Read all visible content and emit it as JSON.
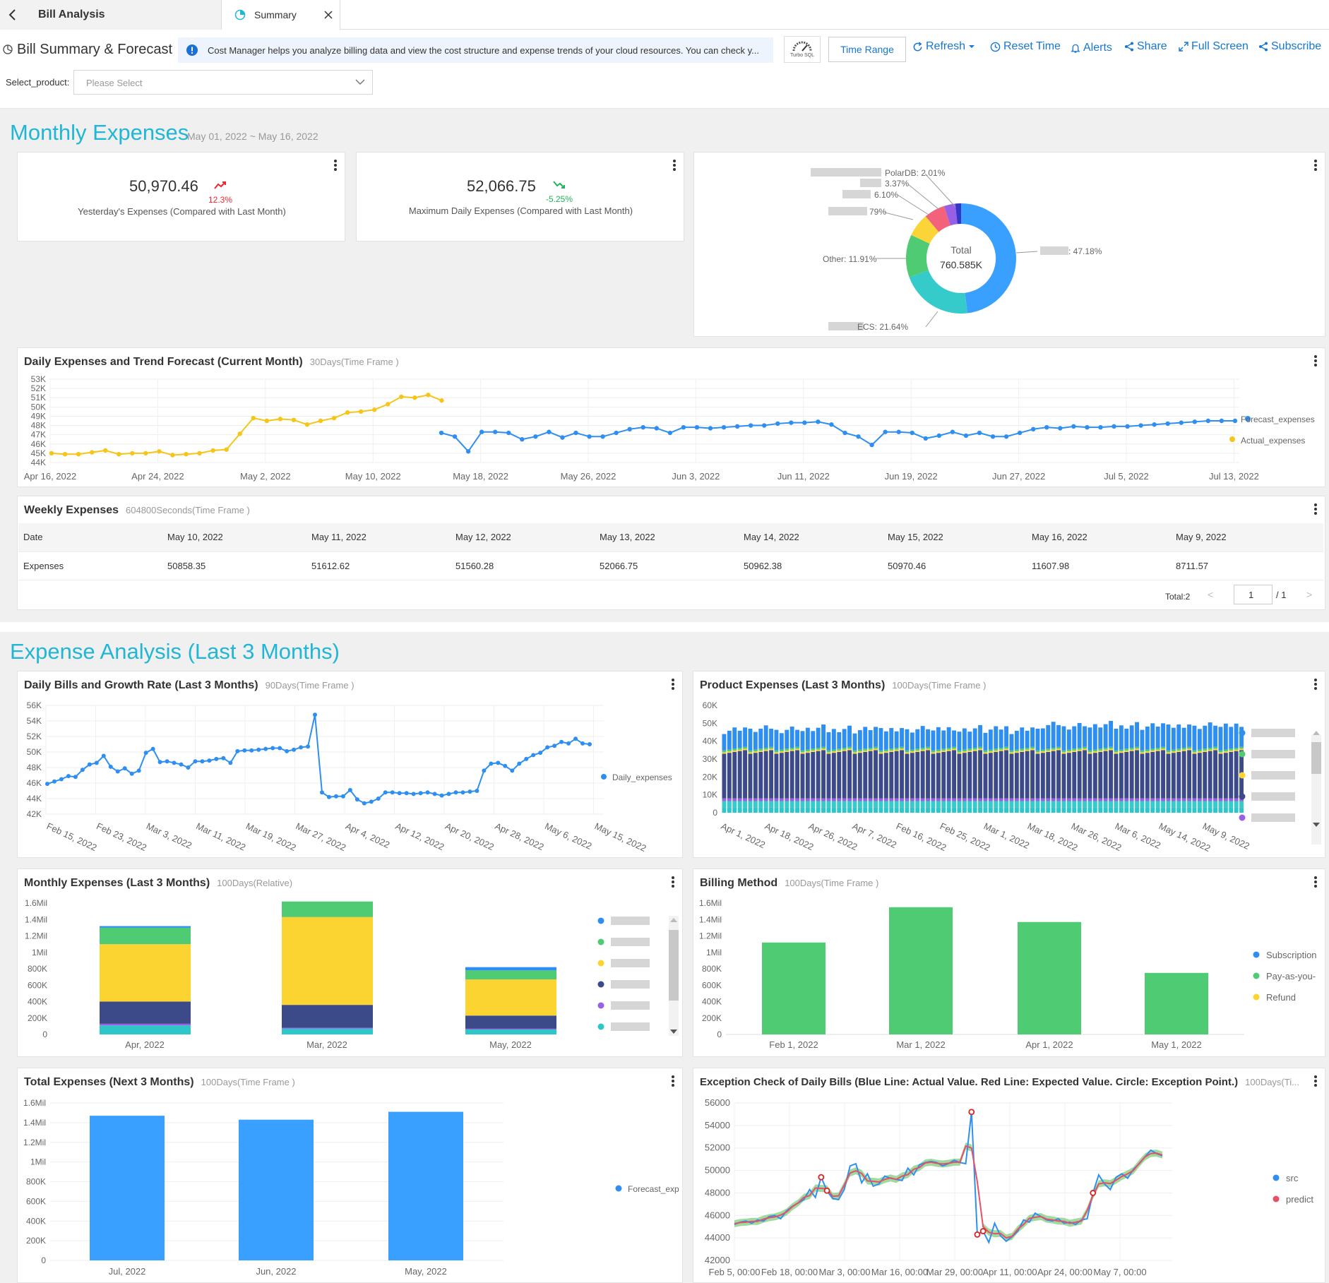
{
  "tabs": {
    "back_label": "Bill Analysis",
    "summary_label": "Summary"
  },
  "header": {
    "title": "Bill Summary & Forecast",
    "info_text": "Cost Manager helps you analyze billing data and view the cost structure and expense trends of your cloud resources. You can check y...",
    "turbo_label": "Turbo SQL",
    "time_range": "Time Range",
    "refresh": "Refresh",
    "reset_time": "Reset Time",
    "alerts": "Alerts",
    "share": "Share",
    "full_screen": "Full Screen",
    "subscribe": "Subscribe",
    "select_label": "Select_product:",
    "select_placeholder": "Please Select"
  },
  "monthly": {
    "title": "Monthly Expenses",
    "date_range": "May 01, 2022 ~ May 16, 2022",
    "kpi1": {
      "value": "50,970.46",
      "change": "12.3%",
      "label": "Yesterday's Expenses (Compared with Last Month)",
      "trend": "up"
    },
    "kpi2": {
      "value": "52,066.75",
      "change": "-5.25%",
      "label": "Maximum Daily Expenses (Compared with Last Month)",
      "trend": "down"
    },
    "donut": {
      "total_label": "Total",
      "total_value": "760.585K",
      "labels": [
        "PolarDB: 2.01%",
        "3.37%",
        "6.10%",
        "79%",
        "Other: 11.91%",
        "ECS: 21.64%",
        ": 47.18%"
      ]
    }
  },
  "daily_forecast": {
    "title": "Daily Expenses and Trend Forecast (Current Month)",
    "sub": "30Days(Time Frame )"
  },
  "weekly": {
    "title": "Weekly Expenses",
    "sub": "604800Seconds(Time Frame )",
    "header": [
      "Date",
      "May 10, 2022",
      "May 11, 2022",
      "May 12, 2022",
      "May 13, 2022",
      "May 14, 2022",
      "May 15, 2022",
      "May 16, 2022",
      "May 9, 2022"
    ],
    "row": [
      "Expenses",
      "50858.35",
      "51612.62",
      "51560.28",
      "52066.75",
      "50962.38",
      "50970.46",
      "11607.98",
      "8711.57"
    ],
    "total": "Total:2",
    "page": "1",
    "pages": "/ 1"
  },
  "analysis": {
    "title": "Expense Analysis (Last 3 Months)"
  },
  "c1": {
    "title": "Daily Bills and Growth Rate (Last 3 Months)",
    "sub": "90Days(Time Frame )"
  },
  "c2": {
    "title": "Product Expenses (Last 3 Months)",
    "sub": "100Days(Time Frame )"
  },
  "c3": {
    "title": "Monthly Expenses (Last 3 Months)",
    "sub": "100Days(Relative)"
  },
  "c4": {
    "title": "Billing Method",
    "sub": "100Days(Time Frame )"
  },
  "c5": {
    "title": "Total Expenses (Next 3 Months)",
    "sub": "100Days(Time Frame )"
  },
  "c6": {
    "title": "Exception Check of Daily Bills (Blue Line: Actual Value. Red Line: Expected Value. Circle: Exception Point.)",
    "sub": "100Days(Ti..."
  },
  "chart_data": [
    {
      "id": "forecast",
      "type": "line",
      "ylim": [
        44000,
        53000
      ],
      "yticks": [
        "44K",
        "45K",
        "46K",
        "47K",
        "48K",
        "49K",
        "50K",
        "51K",
        "52K",
        "53K"
      ],
      "xticks": [
        "Apr 16, 2022",
        "Apr 24, 2022",
        "May 2, 2022",
        "May 10, 2022",
        "May 18, 2022",
        "May 26, 2022",
        "Jun 3, 2022",
        "Jun 11, 2022",
        "Jun 19, 2022",
        "Jun 27, 2022",
        "Jul 5, 2022",
        "Jul 13, 2022"
      ],
      "series": [
        {
          "name": "Actual_expenses",
          "color": "#f5c518",
          "values": [
            45,
            44.9,
            44.9,
            45.1,
            45.3,
            44.9,
            45,
            45,
            45.2,
            44.8,
            44.9,
            45,
            45.3,
            45.4,
            47.1,
            48.8,
            48.5,
            48.7,
            48.6,
            48.1,
            48.5,
            48.8,
            49.4,
            49.5,
            49.7,
            50.3,
            51.1,
            51,
            51.3,
            50.7
          ]
        },
        {
          "name": "Forecast_expenses",
          "color": "#2f8ff0",
          "values": [
            47.2,
            46.8,
            45.2,
            47.3,
            47.3,
            47.2,
            46.5,
            46.8,
            47.3,
            46.7,
            47.2,
            46.8,
            46.8,
            47.2,
            47.6,
            47.8,
            47.7,
            47.2,
            47.8,
            47.8,
            47.7,
            47.8,
            47.9,
            48,
            48,
            48.2,
            48.3,
            48.3,
            48.4,
            48.1,
            47.2,
            46.8,
            45.9,
            47.3,
            47.3,
            47.2,
            46.6,
            46.9,
            47.3,
            46.9,
            47.2,
            46.8,
            46.8,
            47.2,
            47.6,
            47.8,
            47.7,
            47.9,
            47.8,
            47.8,
            47.9,
            47.9,
            48,
            48.1,
            48.2,
            48.3,
            48.4,
            48.5,
            48.5,
            48.5
          ]
        }
      ]
    },
    {
      "id": "daily3m",
      "type": "line",
      "ylim": [
        42000,
        56000
      ],
      "yticks": [
        "42K",
        "44K",
        "46K",
        "48K",
        "50K",
        "52K",
        "54K",
        "56K"
      ],
      "xticks": [
        "Feb 15, 2022",
        "Feb 23, 2022",
        "Mar 3, 2022",
        "Mar 11, 2022",
        "Mar 19, 2022",
        "Mar 27, 2022",
        "Apr 4, 2022",
        "Apr 12, 2022",
        "Apr 20, 2022",
        "Apr 28, 2022",
        "May 6, 2022",
        "May 15, 2022"
      ],
      "series": [
        {
          "name": "Daily_expenses",
          "color": "#2f8ff0",
          "values": [
            45.9,
            46.2,
            46.5,
            46.9,
            46.8,
            47.7,
            48.4,
            48.6,
            49.5,
            48.1,
            47.5,
            47.9,
            47.2,
            47.6,
            49.9,
            50.4,
            48.7,
            48.8,
            48.6,
            48.4,
            48,
            48.8,
            48.8,
            48.9,
            49.1,
            49.2,
            48.6,
            50.1,
            50.2,
            50.2,
            50.3,
            50.4,
            50.5,
            50.5,
            50.1,
            50.3,
            50.6,
            50.7,
            54.8,
            44.8,
            44.2,
            44.3,
            44.3,
            45.1,
            43.9,
            43.4,
            43.6,
            44,
            44.8,
            44.8,
            44.7,
            44.7,
            44.6,
            44.7,
            44.8,
            44.6,
            44.4,
            44.6,
            44.8,
            44.8,
            44.9,
            45,
            47.6,
            48.5,
            48.6,
            48.2,
            47.6,
            48.5,
            49.1,
            49.6,
            49.9,
            50.6,
            50.8,
            51.3,
            51.1,
            51.7,
            51.1,
            51
          ]
        }
      ]
    },
    {
      "id": "product3m",
      "type": "bar",
      "ylim": [
        0,
        60000
      ],
      "yticks": [
        "0",
        "10K",
        "20K",
        "30K",
        "40K",
        "50K",
        "60K"
      ],
      "xticks": [
        "Apr 1, 2022",
        "Apr 18, 2022",
        "Apr 26, 2022",
        "Apr 7, 2022",
        "Feb 16, 2022",
        "Feb 25, 2022",
        "Mar 1, 2022",
        "Mar 18, 2022",
        "Mar 26, 2022",
        "Mar 6, 2022",
        "May 14, 2022",
        "May 9, 2022"
      ]
    },
    {
      "id": "monthly3m",
      "type": "bar",
      "ylim": [
        0,
        1600000
      ],
      "yticks": [
        "0",
        "200K",
        "400K",
        "600K",
        "800K",
        "1Mil",
        "1.2Mil",
        "1.4Mil",
        "1.6Mil"
      ],
      "categories": [
        "Apr, 2022",
        "Mar, 2022",
        "May, 2022"
      ],
      "series": [
        {
          "color": "#2ec7c9",
          "values": [
            110000,
            70000,
            60000
          ]
        },
        {
          "color": "#9d5ee6",
          "values": [
            20000,
            10000,
            10000
          ]
        },
        {
          "color": "#3d4a8a",
          "values": [
            270000,
            280000,
            160000
          ]
        },
        {
          "color": "#fcd432",
          "values": [
            700000,
            1070000,
            440000
          ]
        },
        {
          "color": "#4ecb73",
          "values": [
            200000,
            190000,
            110000
          ]
        },
        {
          "color": "#2f8ff0",
          "values": [
            20000,
            0,
            40000
          ]
        }
      ]
    },
    {
      "id": "billing",
      "type": "bar",
      "ylim": [
        0,
        1600000
      ],
      "yticks": [
        "0",
        "200K",
        "400K",
        "600K",
        "800K",
        "1Mil",
        "1.2Mil",
        "1.4Mil",
        "1.6Mil"
      ],
      "categories": [
        "Feb 1, 2022",
        "Mar 1, 2022",
        "Apr 1, 2022",
        "May 1, 2022"
      ],
      "values": [
        1120000,
        1550000,
        1370000,
        750000
      ],
      "legend": [
        "Subscription",
        "Pay-as-you-",
        "Refund"
      ],
      "legend_colors": [
        "#2f8ff0",
        "#4ecb73",
        "#fcd432"
      ]
    },
    {
      "id": "next3m",
      "type": "bar",
      "ylim": [
        0,
        1600000
      ],
      "yticks": [
        "0",
        "200K",
        "400K",
        "600K",
        "800K",
        "1Mil",
        "1.2Mil",
        "1.4Mil",
        "1.6Mil"
      ],
      "categories": [
        "Jul, 2022",
        "Jun, 2022",
        "May, 2022"
      ],
      "values": [
        1470000,
        1430000,
        1510000
      ],
      "legend": [
        "Forecast_exp"
      ]
    },
    {
      "id": "exception",
      "type": "line",
      "ylim": [
        42000,
        56000
      ],
      "yticks": [
        "42000",
        "44000",
        "46000",
        "48000",
        "50000",
        "52000",
        "54000",
        "56000"
      ],
      "xticks": [
        "Feb 5, 00:00",
        "Feb 18, 00:00",
        "Mar 3, 00:00",
        "Mar 16, 00:00",
        "Mar 29, 00:00",
        "Apr 11, 00:00",
        "Apr 24, 00:00",
        "May 7, 00:00"
      ],
      "series": [
        {
          "name": "src",
          "color": "#2f8ff0"
        },
        {
          "name": "predict",
          "color": "#e8506a"
        }
      ]
    }
  ]
}
